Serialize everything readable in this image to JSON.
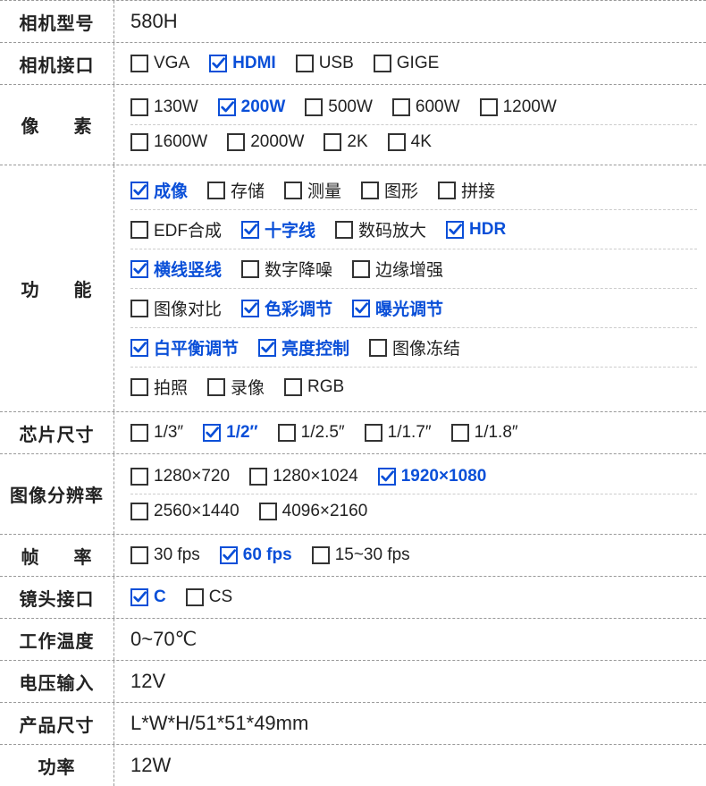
{
  "colors": {
    "checked": "#0a4fd8",
    "border": "#999999",
    "text": "#222222"
  },
  "rows": [
    {
      "label": "相机型号",
      "value": "580H"
    },
    {
      "label": "相机接口",
      "options": [
        {
          "text": "VGA",
          "checked": false
        },
        {
          "text": "HDMI",
          "checked": true
        },
        {
          "text": "USB",
          "checked": false
        },
        {
          "text": "GIGE",
          "checked": false
        }
      ]
    },
    {
      "label": "像素",
      "spaced": true,
      "subrows": [
        [
          {
            "text": "130W",
            "checked": false
          },
          {
            "text": "200W",
            "checked": true
          },
          {
            "text": "500W",
            "checked": false
          },
          {
            "text": "600W",
            "checked": false
          },
          {
            "text": "1200W",
            "checked": false
          }
        ],
        [
          {
            "text": "1600W",
            "checked": false
          },
          {
            "text": "2000W",
            "checked": false
          },
          {
            "text": "2K",
            "checked": false
          },
          {
            "text": "4K",
            "checked": false
          }
        ]
      ]
    },
    {
      "label": "功能",
      "spaced": true,
      "subrows": [
        [
          {
            "text": "成像",
            "checked": true
          },
          {
            "text": "存储",
            "checked": false
          },
          {
            "text": "测量",
            "checked": false
          },
          {
            "text": "图形",
            "checked": false
          },
          {
            "text": "拼接",
            "checked": false
          }
        ],
        [
          {
            "text": "EDF合成",
            "checked": false
          },
          {
            "text": "十字线",
            "checked": true
          },
          {
            "text": "数码放大",
            "checked": false
          },
          {
            "text": "HDR",
            "checked": true
          }
        ],
        [
          {
            "text": "横线竖线",
            "checked": true
          },
          {
            "text": "数字降噪",
            "checked": false
          },
          {
            "text": "边缘增强",
            "checked": false
          }
        ],
        [
          {
            "text": "图像对比",
            "checked": false
          },
          {
            "text": "色彩调节",
            "checked": true
          },
          {
            "text": "曝光调节",
            "checked": true
          }
        ],
        [
          {
            "text": "白平衡调节",
            "checked": true
          },
          {
            "text": "亮度控制",
            "checked": true
          },
          {
            "text": "图像冻结",
            "checked": false
          }
        ],
        [
          {
            "text": "拍照",
            "checked": false
          },
          {
            "text": "录像",
            "checked": false
          },
          {
            "text": "RGB",
            "checked": false
          }
        ]
      ]
    },
    {
      "label": "芯片尺寸",
      "options": [
        {
          "text": "1/3″",
          "checked": false
        },
        {
          "text": "1/2″",
          "checked": true
        },
        {
          "text": "1/2.5″",
          "checked": false
        },
        {
          "text": "1/1.7″",
          "checked": false
        },
        {
          "text": "1/1.8″",
          "checked": false
        }
      ]
    },
    {
      "label": "图像分辨率",
      "subrows": [
        [
          {
            "text": "1280×720",
            "checked": false
          },
          {
            "text": "1280×1024",
            "checked": false
          },
          {
            "text": "1920×1080",
            "checked": true
          }
        ],
        [
          {
            "text": "2560×1440",
            "checked": false
          },
          {
            "text": "4096×2160",
            "checked": false
          }
        ]
      ]
    },
    {
      "label": "帧率",
      "spaced": true,
      "options": [
        {
          "text": "30 fps",
          "checked": false
        },
        {
          "text": "60 fps",
          "checked": true
        },
        {
          "text": "15~30 fps",
          "checked": false
        }
      ]
    },
    {
      "label": "镜头接口",
      "options": [
        {
          "text": "C",
          "checked": true
        },
        {
          "text": "CS",
          "checked": false
        }
      ]
    },
    {
      "label": "工作温度",
      "value": "0~70℃"
    },
    {
      "label": "电压输入",
      "value": "12V"
    },
    {
      "label": "产品尺寸",
      "value": "L*W*H/51*51*49mm"
    },
    {
      "label": "功率",
      "value": "12W",
      "noborder": true
    }
  ]
}
